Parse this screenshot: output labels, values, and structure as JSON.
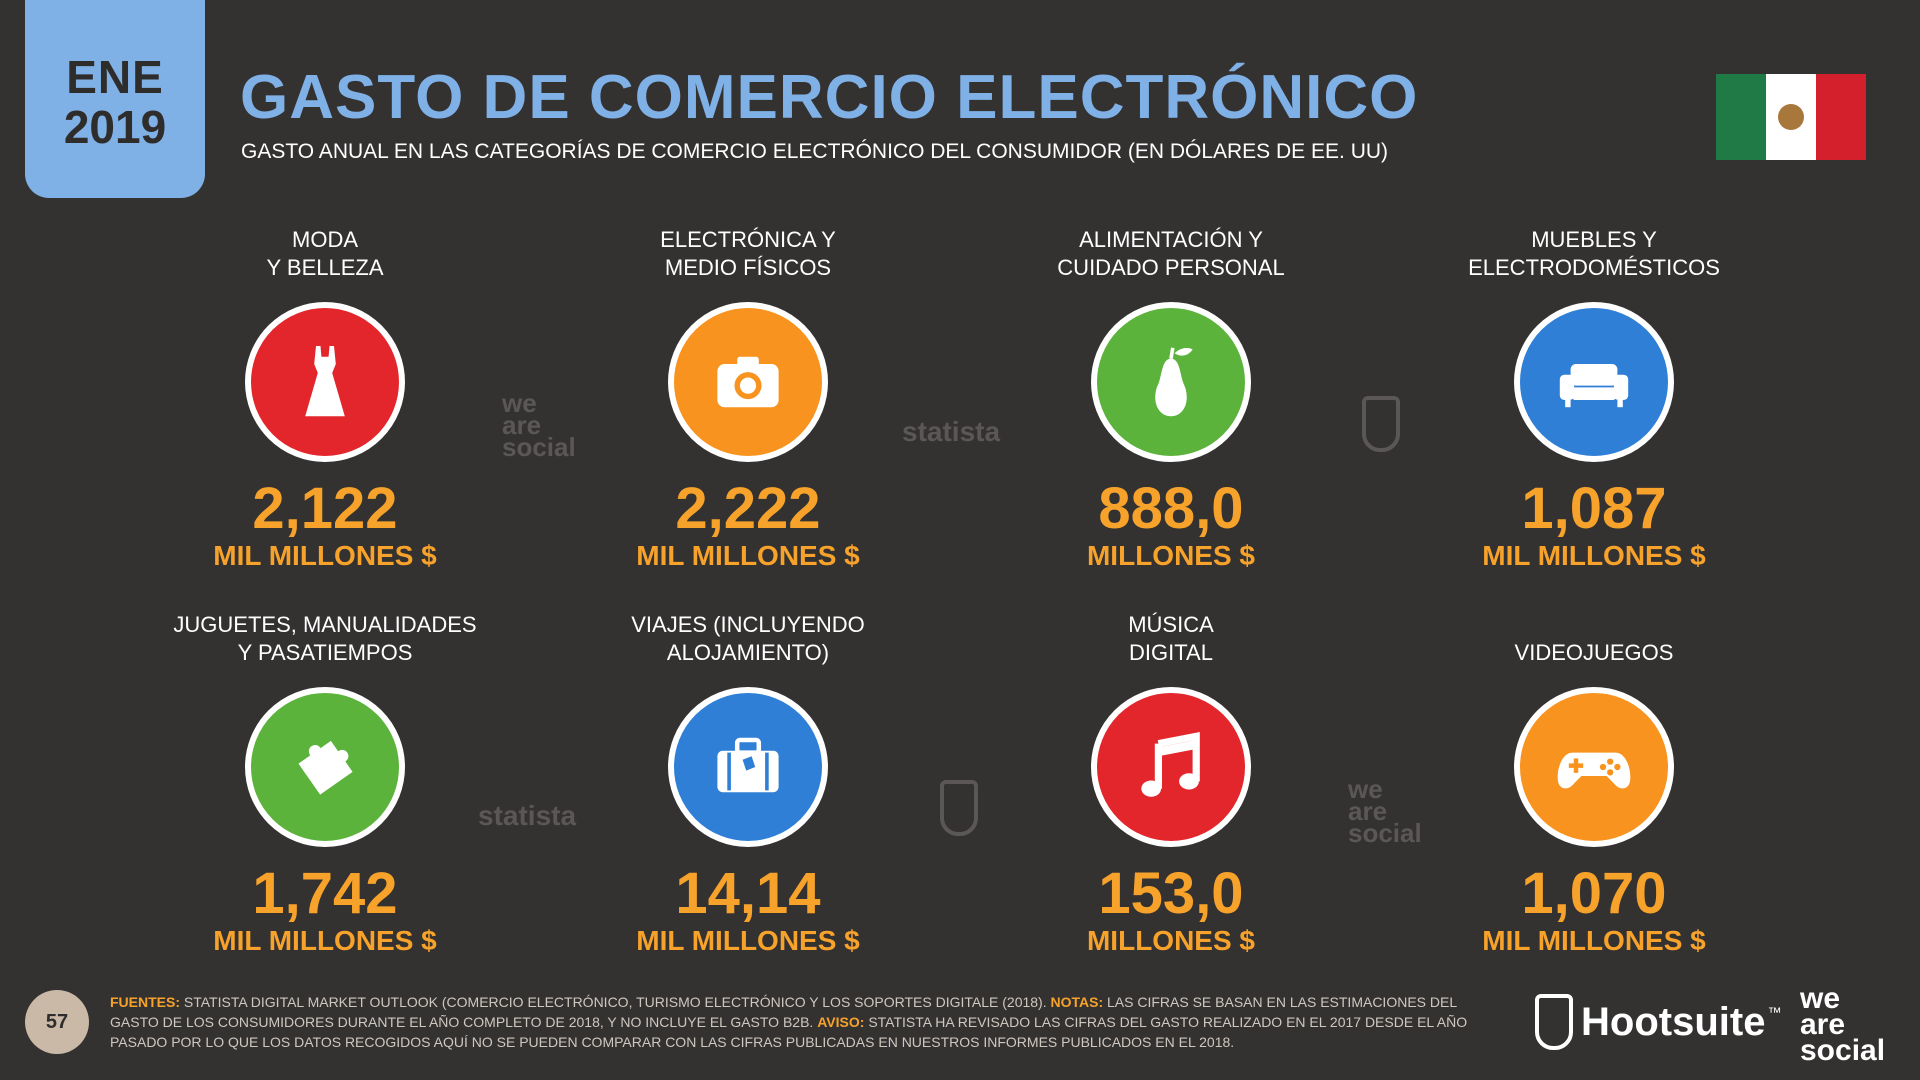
{
  "header": {
    "month": "ENE",
    "year": "2019",
    "title": "GASTO DE COMERCIO ELECTRÓNICO",
    "subtitle": "GASTO ANUAL EN LAS CATEGORÍAS DE COMERCIO ELECTRÓNICO DEL CONSUMIDOR (EN DÓLARES DE EE. UU)"
  },
  "colors": {
    "accent_blue": "#7fb0e6",
    "value_orange": "#f7a32b",
    "red": "#e3262b",
    "orange": "#f7931e",
    "green": "#5cb33c",
    "blue": "#2f7fd6"
  },
  "categories": [
    {
      "label_1": "MODA",
      "label_2": "Y BELLEZA",
      "value": "2,122",
      "unit": "MIL MILLONES $",
      "icon": "dress-icon",
      "color": "#e3262b"
    },
    {
      "label_1": "ELECTRÓNICA Y",
      "label_2": "MEDIO FÍSICOS",
      "value": "2,222",
      "unit": "MIL MILLONES $",
      "icon": "camera-icon",
      "color": "#f7931e"
    },
    {
      "label_1": "ALIMENTACIÓN Y",
      "label_2": "CUIDADO PERSONAL",
      "value": "888,0",
      "unit": "MILLONES $",
      "icon": "pear-icon",
      "color": "#5cb33c"
    },
    {
      "label_1": "MUEBLES Y",
      "label_2": "ELECTRODOMÉSTICOS",
      "value": "1,087",
      "unit": "MIL MILLONES $",
      "icon": "sofa-icon",
      "color": "#2f7fd6"
    },
    {
      "label_1": "JUGUETES, MANUALIDADES",
      "label_2": "Y PASATIEMPOS",
      "value": "1,742",
      "unit": "MIL MILLONES $",
      "icon": "puzzle-icon",
      "color": "#5cb33c"
    },
    {
      "label_1": "VIAJES (INCLUYENDO",
      "label_2": "ALOJAMIENTO)",
      "value": "14,14",
      "unit": "MIL MILLONES $",
      "icon": "suitcase-icon",
      "color": "#2f7fd6"
    },
    {
      "label_1": "MÚSICA",
      "label_2": "DIGITAL",
      "value": "153,0",
      "unit": "MILLONES $",
      "icon": "music-note-icon",
      "color": "#e3262b"
    },
    {
      "label_1": "",
      "label_2": "VIDEOJUEGOS",
      "value": "1,070",
      "unit": "MIL MILLONES $",
      "icon": "gamepad-icon",
      "color": "#f7931e"
    }
  ],
  "watermarks": {
    "social": "we are social",
    "statista": "statista"
  },
  "footer": {
    "page": "57",
    "sources_key": "FUENTES:",
    "sources_text": "STATISTA DIGITAL MARKET OUTLOOK (COMERCIO ELECTRÓNICO, TURISMO ELECTRÓNICO Y LOS SOPORTES DIGITALE (2018).",
    "notes_key": "NOTAS:",
    "notes_text": "LAS CIFRAS SE BASAN EN LAS ESTIMACIONES DEL GASTO DE LOS CONSUMIDORES DURANTE EL AÑO COMPLETO DE 2018, Y NO INCLUYE EL GASTO B2B.",
    "warning_key": "AVISO:",
    "warning_text": "STATISTA HA REVISADO LAS CIFRAS DEL GASTO REALIZADO EN EL 2017 DESDE EL AÑO PASADO POR LO QUE LOS DATOS RECOGIDOS AQUÍ NO SE PUEDEN COMPARAR CON LAS CIFRAS PUBLICADAS EN NUESTROS INFORMES PUBLICADOS EN EL 2018.",
    "brand_hootsuite": "Hootsuite",
    "brand_tm": "™",
    "brand_was_1": "we",
    "brand_was_2": "are",
    "brand_was_3": "social"
  }
}
